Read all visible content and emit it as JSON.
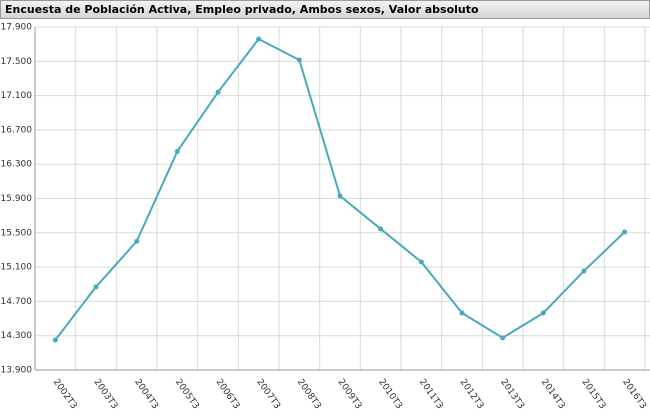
{
  "chart_data": {
    "type": "line",
    "title": "Encuesta de Población Activa, Empleo privado, Ambos sexos, Valor absoluto",
    "categories": [
      "2002T3",
      "2003T3",
      "2004T3",
      "2005T3",
      "2006T3",
      "2007T3",
      "2008T3",
      "2009T3",
      "2010T3",
      "2011T3",
      "2012T3",
      "2013T3",
      "2014T3",
      "2015T3",
      "2016T3"
    ],
    "series": [
      {
        "color": "#4aa8bd",
        "values": [
          14250,
          14870,
          15400,
          16450,
          17140,
          17760,
          17515,
          15930,
          15545,
          15160,
          14565,
          14275,
          14565,
          15055,
          15510
        ]
      }
    ],
    "ylim": [
      13900,
      17900
    ],
    "yticks": [
      {
        "value": 13900,
        "label": "13.900"
      },
      {
        "value": 14300,
        "label": "14.300"
      },
      {
        "value": 14700,
        "label": "14.700"
      },
      {
        "value": 15100,
        "label": "15.100"
      },
      {
        "value": 15500,
        "label": "15.500"
      },
      {
        "value": 15900,
        "label": "15.900"
      },
      {
        "value": 16300,
        "label": "16.300"
      },
      {
        "value": 16700,
        "label": "16.700"
      },
      {
        "value": 17100,
        "label": "17.100"
      },
      {
        "value": 17500,
        "label": "17.500"
      },
      {
        "value": 17900,
        "label": "17.900"
      }
    ],
    "grid": true
  }
}
